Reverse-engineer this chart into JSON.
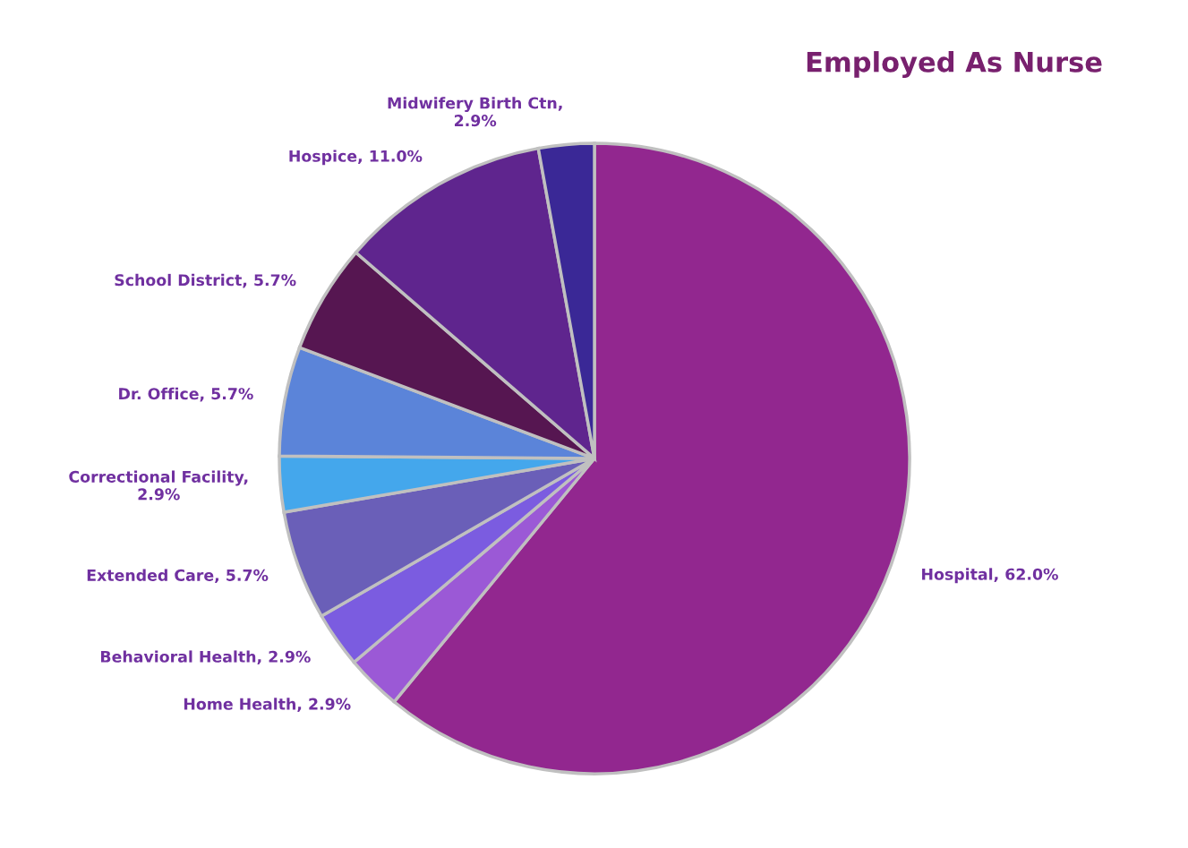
{
  "chart_data": {
    "type": "pie",
    "title": "Employed As Nurse",
    "categories": [
      "Hospital",
      "Home Health",
      "Behavioral Health",
      "Extended Care",
      "Correctional Facility",
      "Dr. Office",
      "School District",
      "Hospice",
      "Midwifery Birth Ctn"
    ],
    "values": [
      62.0,
      2.9,
      2.9,
      5.7,
      2.9,
      5.7,
      5.7,
      11.0,
      2.9
    ],
    "colors": [
      "#92278f",
      "#9b59d6",
      "#7b5ce0",
      "#6a5fb8",
      "#44a7ec",
      "#5b84d9",
      "#561651",
      "#5f258e",
      "#3a2896"
    ],
    "value_labels": [
      ", 62.0%",
      ", 2.9%",
      ", 2.9%",
      ", 5.7%",
      ",\n2.9%",
      ", 5.7%",
      ", 5.7%",
      ", 11.0%",
      ",\n2.9%"
    ]
  }
}
